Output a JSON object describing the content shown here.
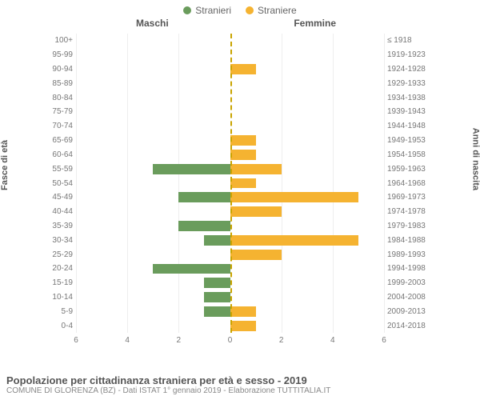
{
  "chart": {
    "type": "population-pyramid",
    "legend": [
      {
        "label": "Stranieri",
        "color": "#6a9c5c"
      },
      {
        "label": "Straniere",
        "color": "#f5b331"
      }
    ],
    "panel_left_title": "Maschi",
    "panel_right_title": "Femmine",
    "y_left_axis_label": "Fasce di età",
    "y_right_axis_label": "Anni di nascita",
    "male_color": "#6a9c5c",
    "female_color": "#f5b331",
    "background_color": "#ffffff",
    "grid_color": "#eeeeee",
    "center_line_color": "#c9a400",
    "x_max": 6,
    "x_ticks": [
      6,
      4,
      2,
      0,
      2,
      4,
      6
    ],
    "tick_fontsize": 10,
    "label_fontsize": 11,
    "rows": [
      {
        "age": "100+",
        "years": "≤ 1918",
        "male": 0,
        "female": 0
      },
      {
        "age": "95-99",
        "years": "1919-1923",
        "male": 0,
        "female": 0
      },
      {
        "age": "90-94",
        "years": "1924-1928",
        "male": 0,
        "female": 1
      },
      {
        "age": "85-89",
        "years": "1929-1933",
        "male": 0,
        "female": 0
      },
      {
        "age": "80-84",
        "years": "1934-1938",
        "male": 0,
        "female": 0
      },
      {
        "age": "75-79",
        "years": "1939-1943",
        "male": 0,
        "female": 0
      },
      {
        "age": "70-74",
        "years": "1944-1948",
        "male": 0,
        "female": 0
      },
      {
        "age": "65-69",
        "years": "1949-1953",
        "male": 0,
        "female": 1
      },
      {
        "age": "60-64",
        "years": "1954-1958",
        "male": 0,
        "female": 1
      },
      {
        "age": "55-59",
        "years": "1959-1963",
        "male": 3,
        "female": 2
      },
      {
        "age": "50-54",
        "years": "1964-1968",
        "male": 0,
        "female": 1
      },
      {
        "age": "45-49",
        "years": "1969-1973",
        "male": 2,
        "female": 5
      },
      {
        "age": "40-44",
        "years": "1974-1978",
        "male": 0,
        "female": 2
      },
      {
        "age": "35-39",
        "years": "1979-1983",
        "male": 2,
        "female": 0
      },
      {
        "age": "30-34",
        "years": "1984-1988",
        "male": 1,
        "female": 5
      },
      {
        "age": "25-29",
        "years": "1989-1993",
        "male": 0,
        "female": 2
      },
      {
        "age": "20-24",
        "years": "1994-1998",
        "male": 3,
        "female": 0
      },
      {
        "age": "15-19",
        "years": "1999-2003",
        "male": 1,
        "female": 0
      },
      {
        "age": "10-14",
        "years": "2004-2008",
        "male": 1,
        "female": 0
      },
      {
        "age": "5-9",
        "years": "2009-2013",
        "male": 1,
        "female": 1
      },
      {
        "age": "0-4",
        "years": "2014-2018",
        "male": 0,
        "female": 1
      }
    ]
  },
  "footer": {
    "title": "Popolazione per cittadinanza straniera per età e sesso - 2019",
    "subtitle": "COMUNE DI GLORENZA (BZ) - Dati ISTAT 1° gennaio 2019 - Elaborazione TUTTITALIA.IT"
  }
}
